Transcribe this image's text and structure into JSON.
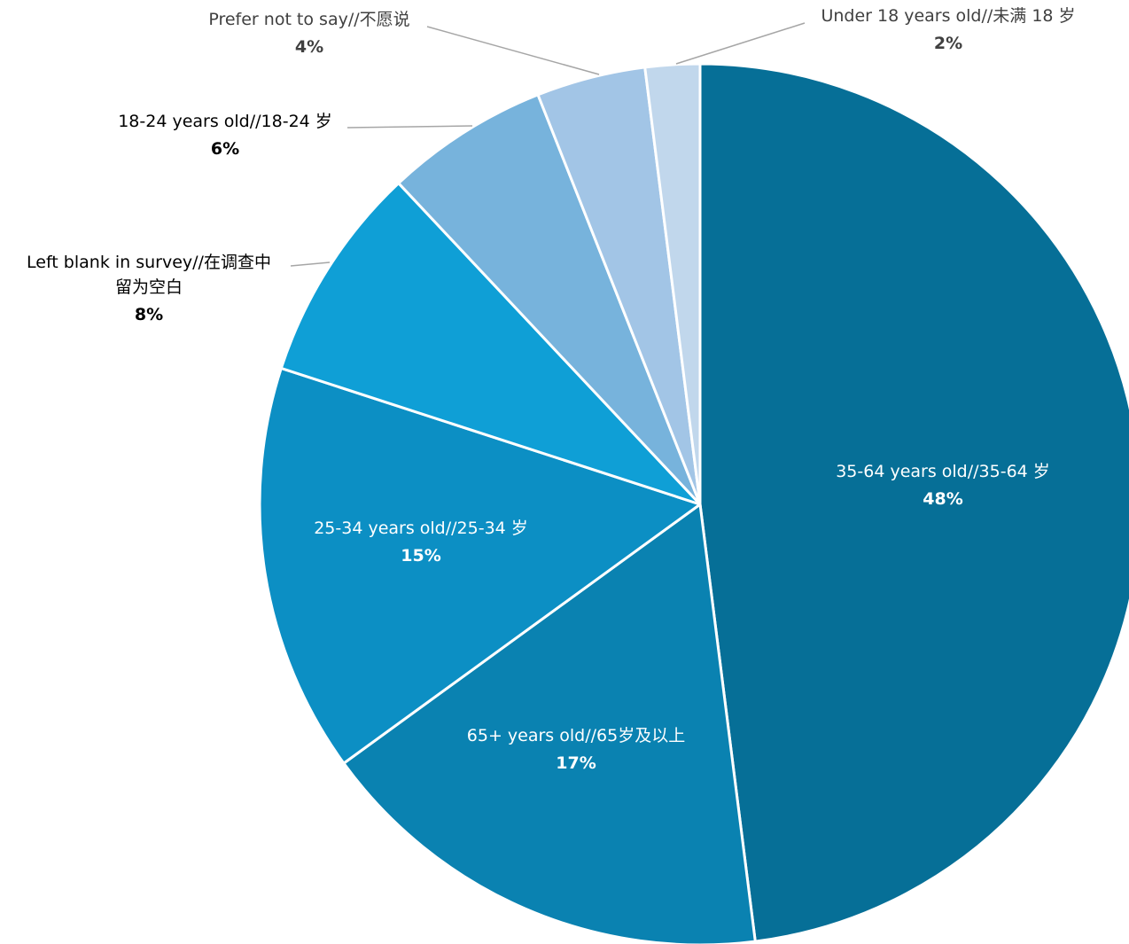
{
  "chart_data": {
    "type": "pie",
    "title": "",
    "slices": [
      {
        "name": "35-64 years old//35-64 岁",
        "value": 48,
        "label": "48%",
        "color": "#066f97"
      },
      {
        "name": "65+ years old//65岁及以上",
        "value": 17,
        "label": "17%",
        "color": "#0a82b1"
      },
      {
        "name": "25-34 years old//25-34 岁",
        "value": 15,
        "label": "15%",
        "color": "#0c8fc4"
      },
      {
        "name": "Left blank in survey//在调查中留为空白",
        "value": 8,
        "label": "8%",
        "color": "#0f9fd6"
      },
      {
        "name": "18-24 years old//18-24 岁",
        "value": 6,
        "label": "6%",
        "color": "#77b3dc"
      },
      {
        "name": "Prefer not to say//不愿说",
        "value": 4,
        "label": "4%",
        "color": "#a2c5e6"
      },
      {
        "name": "Under 18 years old//未满 18 岁",
        "value": 2,
        "label": "2%",
        "color": "#c1d7ec"
      }
    ],
    "legend": "none",
    "start_angle_deg": 0,
    "direction": "clockwise",
    "label_lines": [
      [
        "35-64 years old//35-64 岁"
      ],
      [
        "65+ years old//65岁及以上"
      ],
      [
        "25-34 years old//25-34 岁"
      ],
      [
        "Left blank in survey//在调查中",
        "留为空白"
      ],
      [
        "18-24 years old//18-24 岁"
      ],
      [
        "Prefer not to say//不愿说"
      ],
      [
        "Under 18 years old//未满 18 岁"
      ]
    ]
  }
}
